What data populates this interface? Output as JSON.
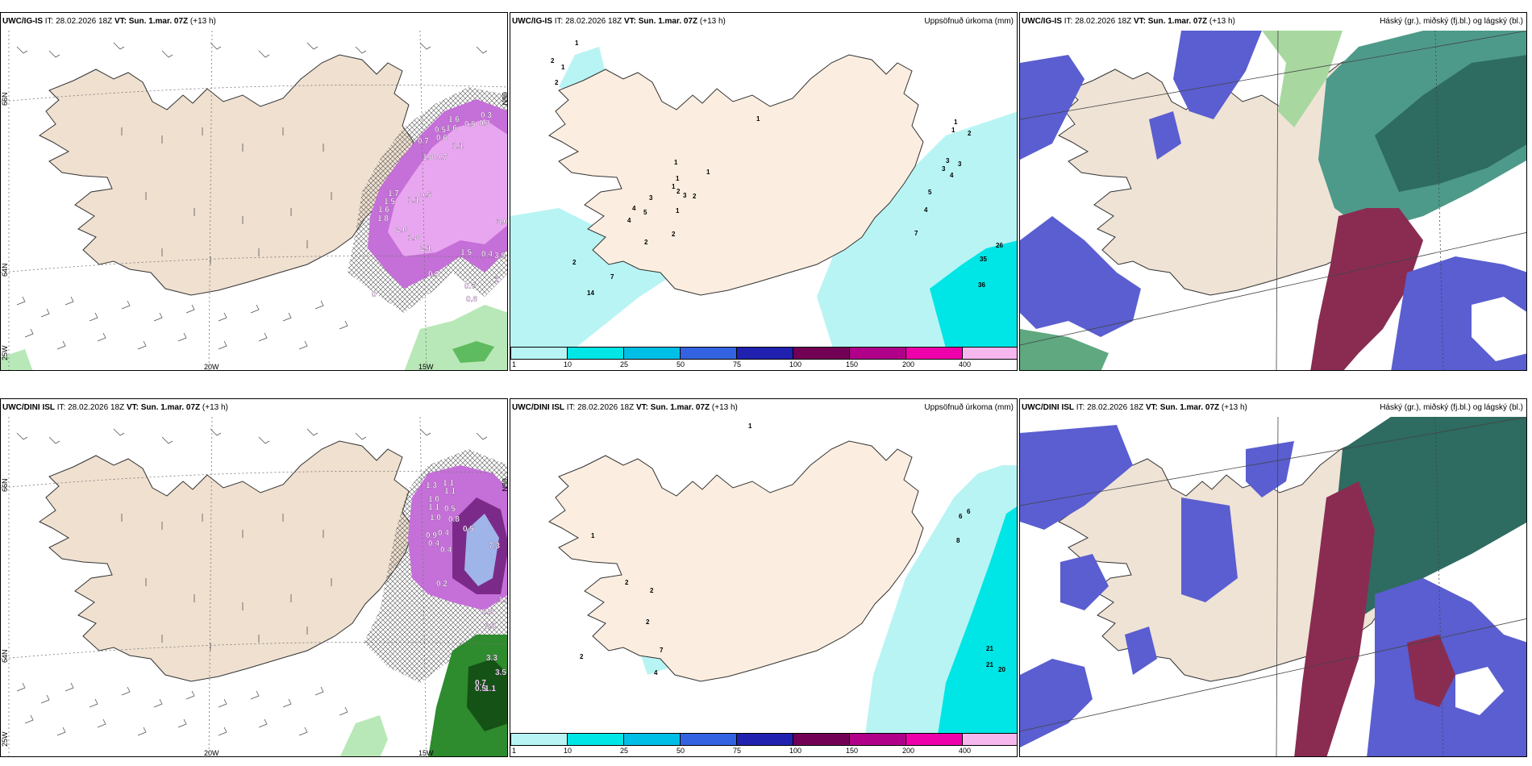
{
  "panels": [
    {
      "model": "UWC/IG-IS",
      "init": "IT: 28.02.2026 18Z",
      "vt_label": "VT:",
      "vt": "Sun. 1.mar. 07Z",
      "lead": "(+13 h)",
      "title": ""
    },
    {
      "model": "UWC/IG-IS",
      "init": "IT: 28.02.2026 18Z",
      "vt_label": "VT:",
      "vt": "Sun. 1.mar. 07Z",
      "lead": "(+13 h)",
      "title": "Uppsöfnuð úrkoma (mm)"
    },
    {
      "model": "UWC/IG-IS",
      "init": "IT: 28.02.2026 18Z",
      "vt_label": "VT:",
      "vt": "Sun. 1.mar. 07Z",
      "lead": "(+13 h)",
      "title": "Háský (gr.), miðský (fj.bl.) og lágský (bl.)"
    },
    {
      "model": "UWC/DINI ISL",
      "init": "IT: 28.02.2026 18Z",
      "vt_label": "VT:",
      "vt": "Sun. 1.mar. 07Z",
      "lead": "(+13 h)",
      "title": ""
    },
    {
      "model": "UWC/DINI ISL",
      "init": "IT: 28.02.2026 18Z",
      "vt_label": "VT:",
      "vt": "Sun. 1.mar. 07Z",
      "lead": "(+13 h)",
      "title": "Uppsöfnuð úrkoma (mm)"
    },
    {
      "model": "UWC/DINI ISL",
      "init": "IT: 28.02.2026 18Z",
      "vt_label": "VT:",
      "vt": "Sun. 1.mar. 07Z",
      "lead": "(+13 h)",
      "title": "Háský (gr.), miðský (fj.bl.) og lágský (bl.)"
    }
  ],
  "grid_labels": {
    "lat_top": "66N",
    "lat_bottom": "64N",
    "lon_w": "20W",
    "lon_e": "15W",
    "corner": "25W"
  },
  "colorbar": {
    "labels": [
      "1",
      "10",
      "25",
      "50",
      "75",
      "100",
      "150",
      "200",
      "400"
    ],
    "colors": [
      "#b8f4f4",
      "#00e5e5",
      "#00bfe6",
      "#3363e0",
      "#2121b0",
      "#720054",
      "#b0008a",
      "#ee00aa",
      "#f5b7ee"
    ]
  },
  "precip_labels_ig": [
    {
      "t": "1",
      "x": 80,
      "y": 18
    },
    {
      "t": "2",
      "x": 50,
      "y": 40
    },
    {
      "t": "1",
      "x": 63,
      "y": 48
    },
    {
      "t": "2",
      "x": 55,
      "y": 67
    },
    {
      "t": "1",
      "x": 305,
      "y": 112
    },
    {
      "t": "1",
      "x": 203,
      "y": 166
    },
    {
      "t": "1",
      "x": 243,
      "y": 178
    },
    {
      "t": "1",
      "x": 205,
      "y": 186
    },
    {
      "t": "1",
      "x": 200,
      "y": 196
    },
    {
      "t": "2",
      "x": 206,
      "y": 202
    },
    {
      "t": "3",
      "x": 214,
      "y": 207
    },
    {
      "t": "2",
      "x": 226,
      "y": 208
    },
    {
      "t": "3",
      "x": 172,
      "y": 210
    },
    {
      "t": "4",
      "x": 151,
      "y": 223
    },
    {
      "t": "5",
      "x": 165,
      "y": 228
    },
    {
      "t": "4",
      "x": 145,
      "y": 238
    },
    {
      "t": "1",
      "x": 205,
      "y": 226
    },
    {
      "t": "2",
      "x": 200,
      "y": 255
    },
    {
      "t": "2",
      "x": 166,
      "y": 265
    },
    {
      "t": "2",
      "x": 77,
      "y": 290
    },
    {
      "t": "7",
      "x": 124,
      "y": 308
    },
    {
      "t": "14",
      "x": 95,
      "y": 328
    },
    {
      "t": "1",
      "x": 550,
      "y": 116
    },
    {
      "t": "1",
      "x": 547,
      "y": 126
    },
    {
      "t": "2",
      "x": 567,
      "y": 130
    },
    {
      "t": "3",
      "x": 540,
      "y": 164
    },
    {
      "t": "3",
      "x": 535,
      "y": 174
    },
    {
      "t": "3",
      "x": 555,
      "y": 168
    },
    {
      "t": "4",
      "x": 545,
      "y": 182
    },
    {
      "t": "5",
      "x": 518,
      "y": 203
    },
    {
      "t": "4",
      "x": 513,
      "y": 225
    },
    {
      "t": "7",
      "x": 501,
      "y": 254
    },
    {
      "t": "26",
      "x": 602,
      "y": 269
    },
    {
      "t": "35",
      "x": 582,
      "y": 286
    },
    {
      "t": "36",
      "x": 580,
      "y": 318
    }
  ],
  "precip_labels_dini": [
    {
      "t": "1",
      "x": 295,
      "y": 14
    },
    {
      "t": "6",
      "x": 566,
      "y": 120
    },
    {
      "t": "6",
      "x": 556,
      "y": 126
    },
    {
      "t": "8",
      "x": 553,
      "y": 156
    },
    {
      "t": "1",
      "x": 100,
      "y": 150
    },
    {
      "t": "2",
      "x": 142,
      "y": 208
    },
    {
      "t": "2",
      "x": 173,
      "y": 218
    },
    {
      "t": "2",
      "x": 168,
      "y": 257
    },
    {
      "t": "7",
      "x": 185,
      "y": 292
    },
    {
      "t": "2",
      "x": 86,
      "y": 300
    },
    {
      "t": "4",
      "x": 178,
      "y": 320
    },
    {
      "t": "21",
      "x": 590,
      "y": 290
    },
    {
      "t": "21",
      "x": 590,
      "y": 310
    },
    {
      "t": "20",
      "x": 605,
      "y": 316
    }
  ],
  "wind_labels_ig": [
    {
      "t": "0.5",
      "x": 538,
      "y": 126
    },
    {
      "t": "1.6",
      "x": 555,
      "y": 113
    },
    {
      "t": "1.6",
      "x": 552,
      "y": 124
    },
    {
      "t": "0.5",
      "x": 575,
      "y": 119
    },
    {
      "t": "0.3",
      "x": 595,
      "y": 108
    },
    {
      "t": "0.3",
      "x": 593,
      "y": 118
    },
    {
      "t": "0.7",
      "x": 517,
      "y": 140
    },
    {
      "t": "0.6",
      "x": 540,
      "y": 136
    },
    {
      "t": "1.8",
      "x": 523,
      "y": 160
    },
    {
      "t": "0.7",
      "x": 540,
      "y": 160
    },
    {
      "t": "1.1",
      "x": 560,
      "y": 146
    },
    {
      "t": "1.5",
      "x": 475,
      "y": 215
    },
    {
      "t": "1.6",
      "x": 468,
      "y": 225
    },
    {
      "t": "1.8",
      "x": 467,
      "y": 236
    },
    {
      "t": "1.7",
      "x": 480,
      "y": 205
    },
    {
      "t": "1.1",
      "x": 505,
      "y": 213
    },
    {
      "t": "0.5",
      "x": 520,
      "y": 207
    },
    {
      "t": "2.0",
      "x": 490,
      "y": 250
    },
    {
      "t": "1.8",
      "x": 505,
      "y": 260
    },
    {
      "t": "2.1",
      "x": 520,
      "y": 273
    },
    {
      "t": "1.5",
      "x": 570,
      "y": 278
    },
    {
      "t": "0.4",
      "x": 596,
      "y": 280
    },
    {
      "t": "3.0",
      "x": 615,
      "y": 240
    },
    {
      "t": "3.9",
      "x": 612,
      "y": 282
    },
    {
      "t": "0.5",
      "x": 530,
      "y": 305
    },
    {
      "t": "0.7",
      "x": 575,
      "y": 320
    },
    {
      "t": "0.8",
      "x": 577,
      "y": 336
    },
    {
      "t": "1",
      "x": 612,
      "y": 312
    },
    {
      "t": "0",
      "x": 460,
      "y": 330
    }
  ],
  "wind_labels_dini": [
    {
      "t": "1.3",
      "x": 527,
      "y": 88
    },
    {
      "t": "1.1",
      "x": 548,
      "y": 85
    },
    {
      "t": "1.1",
      "x": 550,
      "y": 95
    },
    {
      "t": "1.0",
      "x": 530,
      "y": 105
    },
    {
      "t": "1.1",
      "x": 530,
      "y": 115
    },
    {
      "t": "0.5",
      "x": 550,
      "y": 117
    },
    {
      "t": "1.0",
      "x": 532,
      "y": 128
    },
    {
      "t": "0.8",
      "x": 555,
      "y": 130
    },
    {
      "t": "0.5",
      "x": 573,
      "y": 142
    },
    {
      "t": "0.9",
      "x": 527,
      "y": 150
    },
    {
      "t": "0.4",
      "x": 542,
      "y": 147
    },
    {
      "t": "0.4",
      "x": 530,
      "y": 160
    },
    {
      "t": "0.4",
      "x": 545,
      "y": 168
    },
    {
      "t": "7.3",
      "x": 605,
      "y": 163
    },
    {
      "t": "0.2",
      "x": 540,
      "y": 210
    },
    {
      "t": "0.5",
      "x": 597,
      "y": 245
    },
    {
      "t": "1.3",
      "x": 617,
      "y": 230
    },
    {
      "t": "1.8",
      "x": 600,
      "y": 262
    },
    {
      "t": "3.3",
      "x": 602,
      "y": 302
    },
    {
      "t": "3.5",
      "x": 613,
      "y": 320
    },
    {
      "t": "0.7",
      "x": 588,
      "y": 333
    },
    {
      "t": "0.5",
      "x": 588,
      "y": 340
    },
    {
      "t": "1.1",
      "x": 600,
      "y": 340
    }
  ]
}
